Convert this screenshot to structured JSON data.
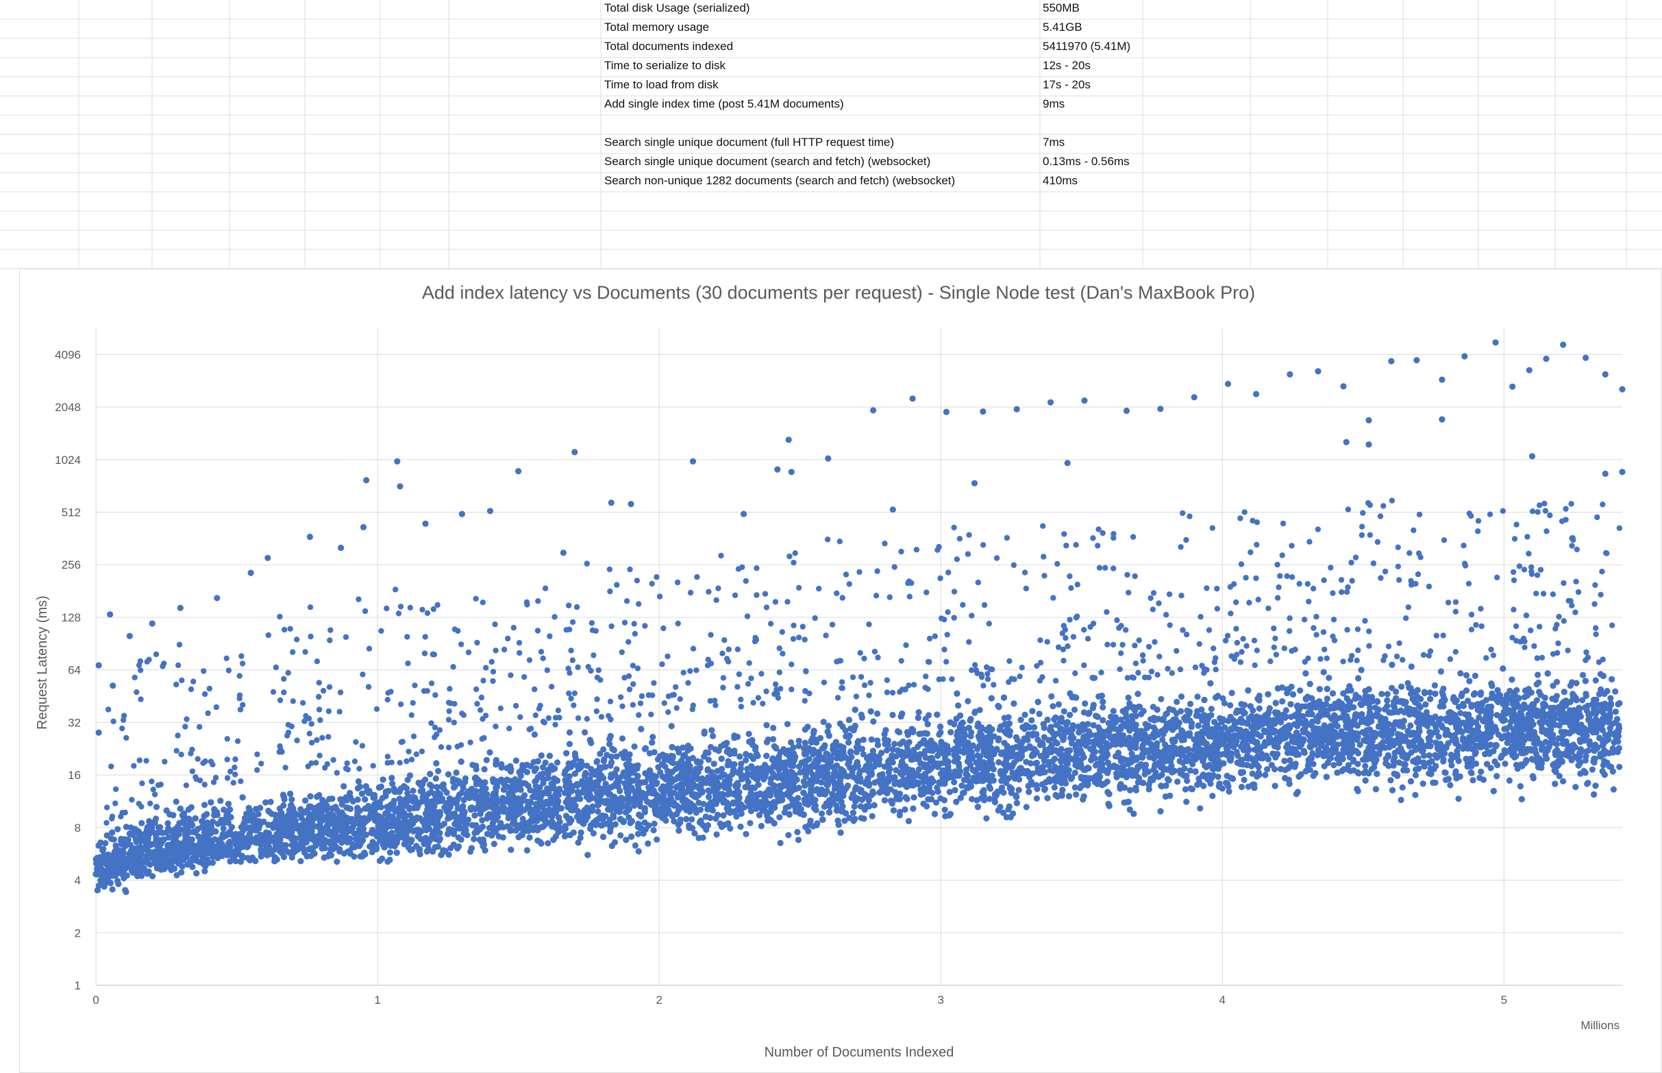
{
  "stats": {
    "rows": [
      {
        "label": "Total disk Usage (serialized)",
        "value": "550MB"
      },
      {
        "label": "Total memory usage",
        "value": "5.41GB"
      },
      {
        "label": "Total documents indexed",
        "value": "5411970 (5.41M)"
      },
      {
        "label": "Time to serialize to disk",
        "value": "12s - 20s"
      },
      {
        "label": "Time to load from disk",
        "value": "17s - 20s"
      },
      {
        "label": "Add single index time (post 5.41M documents)",
        "value": "9ms"
      },
      {
        "label": "",
        "value": ""
      },
      {
        "label": "Search single unique document (full HTTP request time)",
        "value": "7ms"
      },
      {
        "label": "Search single unique document (search and fetch) (websocket)",
        "value": "0.13ms - 0.56ms"
      },
      {
        "label": "Search non-unique 1282 documents (search and fetch) (websocket)",
        "value": "410ms"
      }
    ]
  },
  "colors": {
    "marker": "#4472C4",
    "gridline": "#d9d9d9",
    "sheet_gridline": "#dcdcdc",
    "text": "#595959"
  },
  "chart_data": {
    "type": "scatter",
    "title": "Add index latency vs Documents (30 documents per request) - Single Node test (Dan's MaxBook Pro)",
    "xlabel": "Number of Documents Indexed",
    "ylabel": "Request Latency (ms)",
    "x_display_unit": "Millions",
    "x_unit_multiplier": 1000000,
    "xlim": [
      0,
      5.42
    ],
    "x_ticks": [
      "0",
      "1",
      "2",
      "3",
      "4",
      "5"
    ],
    "y_scale": "log2",
    "ylim": [
      1,
      5792
    ],
    "y_ticks": [
      "1",
      "2",
      "4",
      "8",
      "16",
      "32",
      "64",
      "128",
      "256",
      "512",
      "1024",
      "2048",
      "4096"
    ],
    "grid": true,
    "legend": "none",
    "note": "Dense cloud of about 180000 request samples (one per 30 documents); rendered as a representative band plus outliers.",
    "band_median": [
      {
        "x": 0,
        "y": 4.8
      },
      {
        "x": 0.35,
        "y": 6.5
      },
      {
        "x": 0.7,
        "y": 7.5
      },
      {
        "x": 1.1,
        "y": 8.8
      },
      {
        "x": 1.45,
        "y": 11
      },
      {
        "x": 2.0,
        "y": 13
      },
      {
        "x": 2.5,
        "y": 15
      },
      {
        "x": 3.0,
        "y": 19
      },
      {
        "x": 3.5,
        "y": 22
      },
      {
        "x": 4.0,
        "y": 24
      },
      {
        "x": 4.2,
        "y": 27
      },
      {
        "x": 4.6,
        "y": 29
      },
      {
        "x": 5.0,
        "y": 30
      },
      {
        "x": 5.41,
        "y": 31
      }
    ],
    "band_low": [
      {
        "x": 0,
        "y": 3.0
      },
      {
        "x": 0.35,
        "y": 4.0
      },
      {
        "x": 0.7,
        "y": 4.6
      },
      {
        "x": 1.1,
        "y": 4.3
      },
      {
        "x": 1.45,
        "y": 5.2
      },
      {
        "x": 2.0,
        "y": 5.5
      },
      {
        "x": 2.5,
        "y": 6.0
      },
      {
        "x": 3.0,
        "y": 7.5
      },
      {
        "x": 3.5,
        "y": 8.5
      },
      {
        "x": 4.0,
        "y": 9.5
      },
      {
        "x": 4.2,
        "y": 11
      },
      {
        "x": 4.6,
        "y": 10
      },
      {
        "x": 5.0,
        "y": 10
      },
      {
        "x": 5.41,
        "y": 11
      }
    ],
    "band_high": [
      {
        "x": 0,
        "y": 8
      },
      {
        "x": 0.35,
        "y": 14
      },
      {
        "x": 0.7,
        "y": 15
      },
      {
        "x": 1.1,
        "y": 19
      },
      {
        "x": 1.45,
        "y": 28
      },
      {
        "x": 2.0,
        "y": 36
      },
      {
        "x": 2.5,
        "y": 42
      },
      {
        "x": 3.0,
        "y": 50
      },
      {
        "x": 3.5,
        "y": 56
      },
      {
        "x": 4.0,
        "y": 60
      },
      {
        "x": 4.2,
        "y": 70
      },
      {
        "x": 4.6,
        "y": 72
      },
      {
        "x": 5.0,
        "y": 75
      },
      {
        "x": 5.41,
        "y": 70
      }
    ],
    "outliers": [
      {
        "x": 0.01,
        "y": 68
      },
      {
        "x": 0.01,
        "y": 28
      },
      {
        "x": 0.05,
        "y": 133
      },
      {
        "x": 0.06,
        "y": 52
      },
      {
        "x": 0.12,
        "y": 100
      },
      {
        "x": 0.2,
        "y": 118
      },
      {
        "x": 0.3,
        "y": 145
      },
      {
        "x": 0.43,
        "y": 165
      },
      {
        "x": 0.55,
        "y": 230
      },
      {
        "x": 0.61,
        "y": 280
      },
      {
        "x": 0.76,
        "y": 370
      },
      {
        "x": 0.87,
        "y": 320
      },
      {
        "x": 0.95,
        "y": 420
      },
      {
        "x": 0.96,
        "y": 780
      },
      {
        "x": 1.07,
        "y": 1000
      },
      {
        "x": 1.08,
        "y": 720
      },
      {
        "x": 1.17,
        "y": 440
      },
      {
        "x": 1.3,
        "y": 500
      },
      {
        "x": 1.4,
        "y": 520
      },
      {
        "x": 1.5,
        "y": 880
      },
      {
        "x": 1.66,
        "y": 300
      },
      {
        "x": 1.7,
        "y": 1130
      },
      {
        "x": 1.83,
        "y": 580
      },
      {
        "x": 1.9,
        "y": 570
      },
      {
        "x": 2.12,
        "y": 1000
      },
      {
        "x": 2.3,
        "y": 500
      },
      {
        "x": 2.42,
        "y": 900
      },
      {
        "x": 2.46,
        "y": 1330
      },
      {
        "x": 2.47,
        "y": 870
      },
      {
        "x": 2.6,
        "y": 1040
      },
      {
        "x": 2.76,
        "y": 1960
      },
      {
        "x": 2.83,
        "y": 530
      },
      {
        "x": 2.9,
        "y": 2290
      },
      {
        "x": 3.02,
        "y": 1920
      },
      {
        "x": 3.12,
        "y": 750
      },
      {
        "x": 3.15,
        "y": 1930
      },
      {
        "x": 3.27,
        "y": 1990
      },
      {
        "x": 3.39,
        "y": 2180
      },
      {
        "x": 3.45,
        "y": 980
      },
      {
        "x": 3.51,
        "y": 2230
      },
      {
        "x": 3.66,
        "y": 1950
      },
      {
        "x": 3.78,
        "y": 2000
      },
      {
        "x": 3.9,
        "y": 2330
      },
      {
        "x": 4.02,
        "y": 2780
      },
      {
        "x": 4.12,
        "y": 2430
      },
      {
        "x": 4.24,
        "y": 3150
      },
      {
        "x": 4.34,
        "y": 3280
      },
      {
        "x": 4.43,
        "y": 2690
      },
      {
        "x": 4.44,
        "y": 1290
      },
      {
        "x": 4.52,
        "y": 1250
      },
      {
        "x": 4.52,
        "y": 1720
      },
      {
        "x": 4.6,
        "y": 3750
      },
      {
        "x": 4.69,
        "y": 3800
      },
      {
        "x": 4.78,
        "y": 2940
      },
      {
        "x": 4.78,
        "y": 1740
      },
      {
        "x": 4.86,
        "y": 4000
      },
      {
        "x": 4.97,
        "y": 4800
      },
      {
        "x": 5.03,
        "y": 2680
      },
      {
        "x": 5.09,
        "y": 3330
      },
      {
        "x": 5.1,
        "y": 1070
      },
      {
        "x": 5.15,
        "y": 3870
      },
      {
        "x": 5.21,
        "y": 4660
      },
      {
        "x": 5.29,
        "y": 3920
      },
      {
        "x": 5.36,
        "y": 3150
      },
      {
        "x": 5.42,
        "y": 2590
      },
      {
        "x": 5.36,
        "y": 850
      },
      {
        "x": 5.42,
        "y": 870
      }
    ]
  }
}
